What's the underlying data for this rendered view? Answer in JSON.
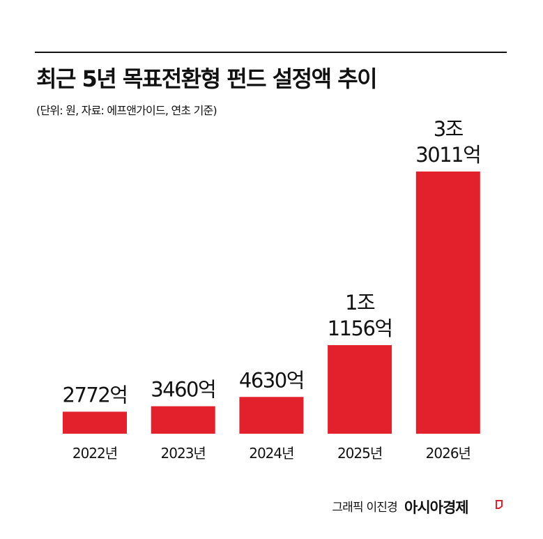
{
  "chart_data": {
    "type": "bar",
    "title": "최근 5년 목표전환형 펀드 설정액 추이",
    "subtitle": "(단위: 원, 자료: 에프앤가이드, 연초 기준)",
    "categories": [
      "2022년",
      "2023년",
      "2024년",
      "2025년",
      "2026년"
    ],
    "values": [
      2772,
      3460,
      4630,
      11156,
      33011
    ],
    "value_labels": [
      "2772억",
      "3460억",
      "4630억",
      "1조\n1156억",
      "3조\n3011억"
    ],
    "color": "#e3212d"
  },
  "credit": {
    "author": "그래픽 이진경",
    "brand": "아시아경제"
  }
}
